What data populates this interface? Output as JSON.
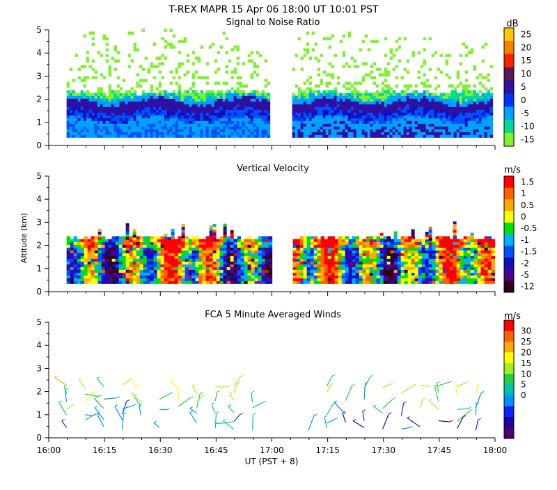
{
  "header": {
    "title": "T-REX  MAPR 15 Apr 06  18:00 UT  10:01  PST"
  },
  "x_axis": {
    "label": "UT  (PST + 8)",
    "ticks": [
      "16:00",
      "16:15",
      "16:30",
      "16:45",
      "17:00",
      "17:15",
      "17:30",
      "17:45",
      "18:00"
    ],
    "range_hours": [
      16,
      18
    ]
  },
  "y_axis": {
    "label": "Altitude (km)",
    "ticks": [
      "0",
      "1",
      "2",
      "3",
      "4",
      "5"
    ],
    "range_km": [
      0,
      5
    ]
  },
  "chart_data": [
    {
      "type": "heatmap",
      "title": "Signal to Noise Ratio",
      "unit": "dB",
      "colorbar": {
        "labels": [
          "25",
          "20",
          "15",
          "10",
          "5",
          "0",
          "-5",
          "-10",
          "-15"
        ],
        "colors": [
          "#ffc800",
          "#ff8000",
          "#ff2000",
          "#5a1a5a",
          "#3010a0",
          "#0030ff",
          "#00a0ff",
          "#00dc90",
          "#80f030"
        ]
      },
      "data_gap_hours": [
        16.99,
        17.09
      ],
      "coverage_km": [
        0.3,
        5.0
      ],
      "description_layers": [
        {
          "altitude_km": [
            0.3,
            1.0
          ],
          "level_db": -5
        },
        {
          "altitude_km": [
            1.0,
            1.8
          ],
          "level_db": 5
        },
        {
          "altitude_km": [
            1.8,
            2.3
          ],
          "level_db": -10
        },
        {
          "altitude_km": [
            2.3,
            5.0
          ],
          "level_db": -15
        }
      ]
    },
    {
      "type": "heatmap",
      "title": "Vertical Velocity",
      "unit": "m/s",
      "colorbar": {
        "labels": [
          "1.5",
          "1",
          "0.5",
          "0",
          "-0.5",
          "-1",
          "-1.5",
          "-2",
          "-5",
          "-12"
        ],
        "colors": [
          "#ff0000",
          "#ff6000",
          "#ffaa00",
          "#ffff00",
          "#00e000",
          "#00b0ff",
          "#0050ff",
          "#1010c0",
          "#500090",
          "#300020"
        ]
      },
      "data_gap_hours": [
        16.99,
        17.09
      ],
      "coverage_km": [
        0.3,
        2.4
      ]
    },
    {
      "type": "scatter",
      "title": "FCA 5 Minute Averaged Winds",
      "unit": "m/s",
      "colorbar": {
        "labels": [
          "30",
          "25",
          "20",
          "15",
          "10",
          "5",
          "0"
        ],
        "colors": [
          "#ff0000",
          "#ff6000",
          "#ffaa00",
          "#ffff00",
          "#a0f020",
          "#20d040",
          "#00c0b0",
          "#0090ff",
          "#1020ff",
          "#2000a0",
          "#500070"
        ]
      },
      "interval_minutes": 5,
      "altitudes_km": [
        0.4,
        0.7,
        1.0,
        1.3,
        1.6,
        1.9,
        2.2
      ],
      "speed_range_ms": [
        0,
        30
      ]
    }
  ]
}
